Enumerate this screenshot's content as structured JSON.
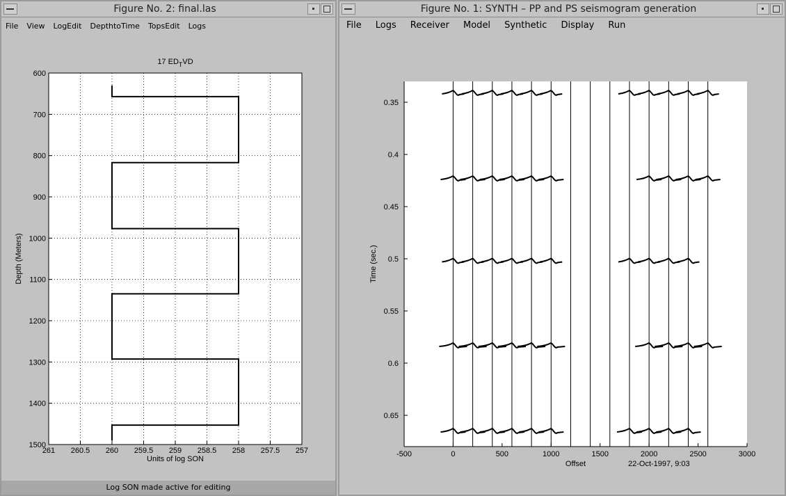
{
  "fig2": {
    "title": "Figure No. 2: final.las",
    "menu": [
      "File",
      "View",
      "LogEdit",
      "DepthtoTime",
      "TopsEdit",
      "Logs"
    ],
    "status": "Log SON    made active for editing",
    "chart_data": {
      "type": "line",
      "title": "17 ED",
      "title_sub": "T",
      "title_tail": "VD",
      "xlabel": "Units of log SON",
      "ylabel": "Depth (Meters)",
      "xlim": [
        261,
        257
      ],
      "ylim": [
        600,
        1500
      ],
      "x_reversed": true,
      "y_reversed": true,
      "xticks": [
        261,
        260.5,
        260,
        259.5,
        259,
        258.5,
        258,
        257.5,
        257
      ],
      "xtick_labels": [
        "261",
        "260.5",
        "260",
        "259.5",
        "259",
        "258.5",
        "258",
        "257.5",
        "257"
      ],
      "yticks": [
        600,
        700,
        800,
        900,
        1000,
        1100,
        1200,
        1300,
        1400,
        1500
      ],
      "ytick_labels": [
        "600",
        "700",
        "800",
        "900",
        "1000",
        "1100",
        "1200",
        "1300",
        "1400",
        "1500"
      ],
      "grid": true,
      "series": [
        {
          "x": [
            260,
            260,
            258,
            258,
            260,
            260,
            258,
            258,
            260,
            260,
            258,
            258,
            260,
            260
          ],
          "y": [
            630,
            657,
            657,
            817,
            817,
            977,
            977,
            1135,
            1135,
            1293,
            1293,
            1453,
            1453,
            1490
          ]
        }
      ]
    }
  },
  "fig1": {
    "title": "Figure No. 1: SYNTH – PP and PS seismogram generation",
    "menu": [
      "File",
      "Logs",
      "Receiver",
      "Model",
      "Synthetic",
      "Display",
      "Run"
    ],
    "timestamp": "22-Oct-1997, 9:03",
    "chart_data": {
      "type": "line",
      "xlabel": "Offset",
      "ylabel": "Time (sec.)",
      "xlim": [
        -500,
        3000
      ],
      "ylim": [
        0.33,
        0.68
      ],
      "y_reversed": true,
      "xticks": [
        -500,
        0,
        500,
        1000,
        1500,
        2000,
        2500,
        3000
      ],
      "xtick_labels": [
        "-500",
        "0",
        "500",
        "1000",
        "1500",
        "2000",
        "2500",
        "3000"
      ],
      "yticks": [
        0.35,
        0.4,
        0.45,
        0.5,
        0.55,
        0.6,
        0.65
      ],
      "ytick_labels": [
        "0.35",
        "0.4",
        "0.45",
        "0.5",
        "0.55",
        "0.6",
        "0.65"
      ],
      "traces_x": [
        0,
        200,
        400,
        600,
        800,
        1000,
        1200,
        1400,
        1600,
        1800,
        2000,
        2200,
        2400,
        2600
      ],
      "events": [
        {
          "t": 0.342,
          "amp": 0.8,
          "traces": [
            0,
            200,
            400,
            600,
            800,
            1000,
            1800,
            2000,
            2200,
            2400,
            2600
          ]
        },
        {
          "t": 0.424,
          "amp": 0.9,
          "traces": [
            0,
            200,
            400,
            600,
            800,
            1000,
            2000,
            2200,
            2400,
            2600
          ]
        },
        {
          "t": 0.503,
          "amp": 0.8,
          "traces": [
            0,
            200,
            400,
            600,
            800,
            1000,
            1800,
            2000,
            2200,
            2400
          ]
        },
        {
          "t": 0.584,
          "amp": 1.0,
          "traces": [
            0,
            200,
            400,
            600,
            800,
            1000,
            2000,
            2200,
            2400,
            2600
          ]
        },
        {
          "t": 0.666,
          "amp": 0.9,
          "traces": [
            0,
            200,
            400,
            600,
            800,
            1000,
            1800,
            2000,
            2200,
            2400
          ]
        }
      ]
    }
  }
}
